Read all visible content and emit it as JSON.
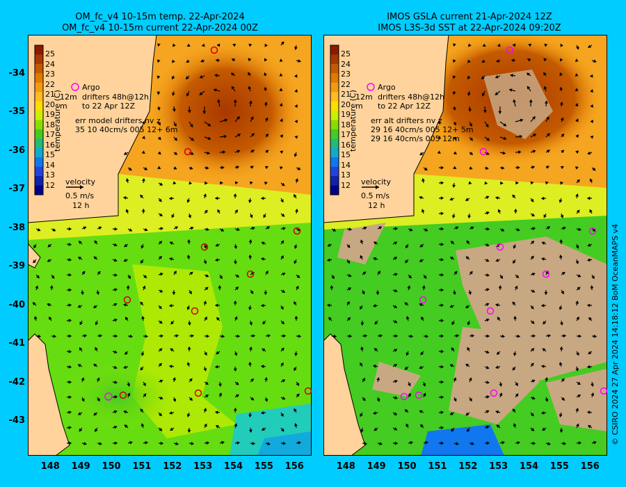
{
  "left_panel": {
    "title_line1": "OM_fc_v4  10-15m temp. 22-Apr-2024",
    "title_line2": "OM_fc_v4  10-15m current 22-Apr-2024 00Z",
    "legend_argo": "Argo",
    "legend_drifters1": "drifters 48h@12h",
    "legend_drifters2": "to 22 Apr 12Z",
    "legend_err1": "err model drifters nv z",
    "legend_err2": "35 10 40cm/s 005 12+ 6m",
    "legend_12m": "12m",
    "legend_m": "m"
  },
  "right_panel": {
    "title_line1": "IMOS GSLA current 21-Apr-2024 12Z",
    "title_line2": "IMOS L3S-3d SST at 22-Apr-2024 09:20Z",
    "legend_argo": "Argo",
    "legend_drifters1": "drifters 48h@12h",
    "legend_drifters2": "to 22 Apr 12Z",
    "legend_err1": "err alt drifters nv z",
    "legend_err2": "29 16 40cm/s 005 12+ 5m",
    "legend_err3": "29 16 40cm/s 005 12m",
    "legend_12m": "12m",
    "legend_m": "m"
  },
  "colorbar": {
    "label": "temperature (C)",
    "ticks": [
      "25",
      "24",
      "23",
      "22",
      "21",
      "20",
      "19",
      "18",
      "17",
      "16",
      "15",
      "14",
      "13",
      "12"
    ],
    "colors": [
      "#8b1a00",
      "#a83800",
      "#c45a00",
      "#e07a00",
      "#f59a10",
      "#ffbb20",
      "#ffdd00",
      "#ccee00",
      "#88dd00",
      "#44cc22",
      "#22bb77",
      "#11aacc",
      "#1177ee",
      "#2244dd",
      "#1122aa",
      "#000088"
    ]
  },
  "velocity_legend": {
    "label": "velocity",
    "speed": "0.5 m/s",
    "time": "12 h"
  },
  "axes": {
    "x_ticks": [
      "148",
      "149",
      "150",
      "151",
      "152",
      "153",
      "154",
      "155",
      "156"
    ],
    "y_ticks": [
      "-34",
      "-35",
      "-36",
      "-37",
      "-38",
      "-39",
      "-40",
      "-41",
      "-42",
      "-43"
    ],
    "lon_range": [
      147.3,
      156.6
    ],
    "lat_range": [
      -43.9,
      -33.0
    ]
  },
  "credit": "© CSIRO 2024   27 Apr 2024 14:18:12 BoM OceanMAPS v4"
}
